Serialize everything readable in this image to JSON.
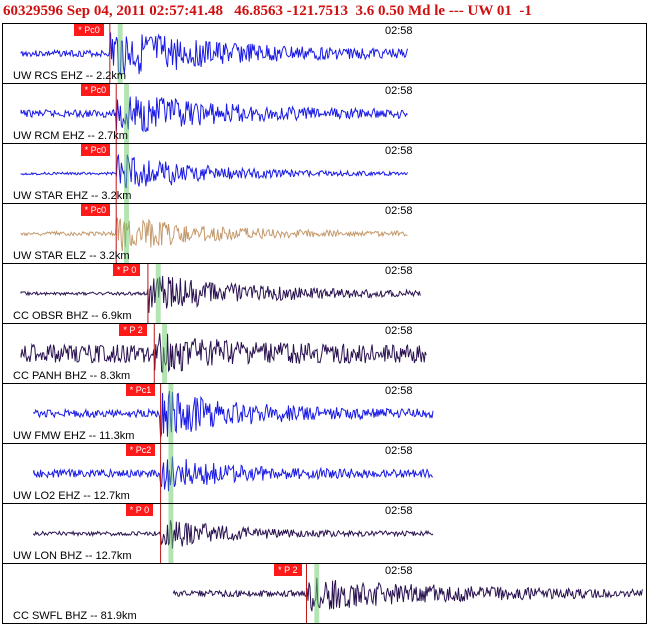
{
  "header": {
    "title": "60329596 Sep 04, 2011 02:57:41.48   46.8563 -121.7513  3.6 0.50 Md le --- UW 01  -1"
  },
  "panels": [
    {
      "label": "UW RCS EHZ -- 2.2km",
      "time": "02:58",
      "pick": "* Pc0",
      "color": "#1a1ae6",
      "trace_start": 0.02,
      "trace_end": 0.63,
      "pick_pos": 0.16,
      "amp": 0.9,
      "noise": 0.12,
      "coda": 0.35
    },
    {
      "label": "UW RCM EHZ -- 2.7km",
      "time": "02:58",
      "pick": "* Pc0",
      "color": "#1a1ae6",
      "trace_start": 0.02,
      "trace_end": 0.63,
      "pick_pos": 0.17,
      "amp": 0.75,
      "noise": 0.14,
      "coda": 0.3
    },
    {
      "label": "UW STAR EHZ -- 3.2km",
      "time": "02:58",
      "pick": "* Pc0",
      "color": "#1a1ae6",
      "trace_start": 0.02,
      "trace_end": 0.63,
      "pick_pos": 0.17,
      "amp": 0.8,
      "noise": 0.05,
      "coda": 0.25
    },
    {
      "label": "UW STAR ELZ -- 3.2km",
      "time": "02:58",
      "pick": "* Pc0",
      "color": "#c49a6c",
      "trace_start": 0.02,
      "trace_end": 0.63,
      "pick_pos": 0.17,
      "amp": 0.7,
      "noise": 0.08,
      "coda": 0.25
    },
    {
      "label": "CC OBSR BHZ -- 6.9km",
      "time": "02:58",
      "pick": "* P 0",
      "color": "#2a1250",
      "trace_start": 0.02,
      "trace_end": 0.65,
      "pick_pos": 0.22,
      "amp": 0.7,
      "noise": 0.06,
      "coda": 0.35
    },
    {
      "label": "CC PANH BHZ -- 8.3km",
      "time": "02:58",
      "pick": "* P 2",
      "color": "#2a1250",
      "trace_start": 0.02,
      "trace_end": 0.66,
      "pick_pos": 0.23,
      "amp": 0.5,
      "noise": 0.35,
      "coda": 0.2
    },
    {
      "label": "UW FMW EHZ -- 11.3km",
      "time": "02:58",
      "pick": "* Pc1",
      "color": "#1a1ae6",
      "trace_start": 0.04,
      "trace_end": 0.67,
      "pick_pos": 0.24,
      "amp": 0.8,
      "noise": 0.15,
      "coda": 0.25
    },
    {
      "label": "UW LO2 EHZ -- 12.7km",
      "time": "02:58",
      "pick": "* Pc2",
      "color": "#1a1ae6",
      "trace_start": 0.04,
      "trace_end": 0.67,
      "pick_pos": 0.24,
      "amp": 0.6,
      "noise": 0.15,
      "coda": 0.2
    },
    {
      "label": "UW LON BHZ -- 12.7km",
      "time": "02:58",
      "pick": "* P 0",
      "color": "#2a1250",
      "trace_start": 0.04,
      "trace_end": 0.67,
      "pick_pos": 0.24,
      "amp": 0.6,
      "noise": 0.08,
      "coda": 0.2
    },
    {
      "label": "CC SWFL BHZ -- 81.9km",
      "time": "02:58",
      "pick": "* P 2",
      "color": "#2a1250",
      "trace_start": 0.26,
      "trace_end": 1.0,
      "pick_pos": 0.47,
      "amp": 0.6,
      "noise": 0.12,
      "coda": 0.4
    }
  ]
}
